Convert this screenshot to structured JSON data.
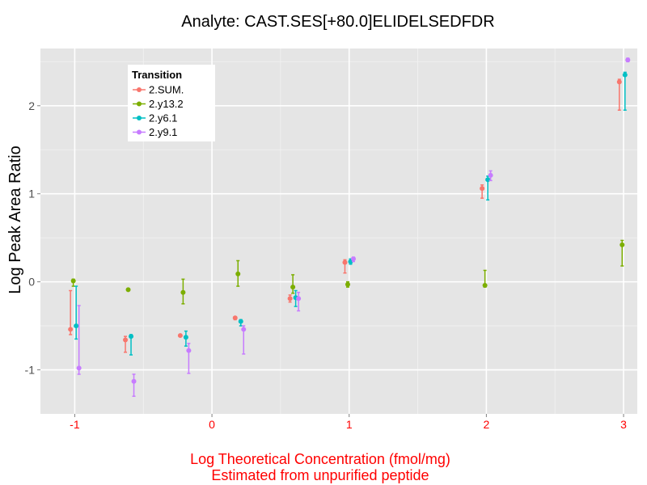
{
  "chart_data": {
    "type": "scatter",
    "title": "Analyte: CAST.SES[+80.0]ELIDELSEDFDR",
    "ylabel": "Log Peak Area Ratio",
    "xlabel_lines": [
      "Log Theoretical Concentration (fmol/mg)",
      "Estimated from unpurified peptide"
    ],
    "x_ticks": [
      "-1",
      "0",
      "1",
      "2",
      "3"
    ],
    "y_ticks": [
      "-1",
      "0",
      "1",
      "2"
    ],
    "xlim": [
      -1.25,
      3.1
    ],
    "ylim": [
      -1.5,
      2.65
    ],
    "grid": true,
    "error_bars": true,
    "legend": {
      "title": "Transition",
      "position": "top-left"
    },
    "series": [
      {
        "name": "2.SUM.",
        "color": "#F8766D",
        "points": [
          {
            "x": -1.0,
            "y": -0.54,
            "lo": -0.6,
            "hi": -0.1
          },
          {
            "x": -0.6,
            "y": -0.66,
            "lo": -0.8,
            "hi": -0.62
          },
          {
            "x": -0.2,
            "y": -0.61,
            "lo": -0.62,
            "hi": -0.6
          },
          {
            "x": 0.2,
            "y": -0.41,
            "lo": -0.43,
            "hi": -0.4
          },
          {
            "x": 0.6,
            "y": -0.19,
            "lo": -0.23,
            "hi": -0.15
          },
          {
            "x": 1.0,
            "y": 0.22,
            "lo": 0.1,
            "hi": 0.25
          },
          {
            "x": 2.0,
            "y": 1.06,
            "lo": 0.95,
            "hi": 1.1
          },
          {
            "x": 3.0,
            "y": 2.27,
            "lo": 1.95,
            "hi": 2.3
          }
        ]
      },
      {
        "name": "2.y13.2",
        "color": "#7CAE00",
        "points": [
          {
            "x": -1.0,
            "y": 0.01,
            "lo": -0.05,
            "hi": 0.03
          },
          {
            "x": -0.6,
            "y": -0.09,
            "lo": -0.1,
            "hi": -0.08
          },
          {
            "x": -0.2,
            "y": -0.12,
            "lo": -0.25,
            "hi": 0.03
          },
          {
            "x": 0.2,
            "y": 0.09,
            "lo": -0.05,
            "hi": 0.24
          },
          {
            "x": 0.6,
            "y": -0.06,
            "lo": -0.13,
            "hi": 0.08
          },
          {
            "x": 1.0,
            "y": -0.03,
            "lo": -0.06,
            "hi": 0.0
          },
          {
            "x": 2.0,
            "y": -0.04,
            "lo": -0.06,
            "hi": 0.13
          },
          {
            "x": 3.0,
            "y": 0.42,
            "lo": 0.18,
            "hi": 0.47
          }
        ]
      },
      {
        "name": "2.y6.1",
        "color": "#00BFC4",
        "points": [
          {
            "x": -1.0,
            "y": -0.5,
            "lo": -0.65,
            "hi": -0.05
          },
          {
            "x": -0.6,
            "y": -0.62,
            "lo": -0.83,
            "hi": -0.6
          },
          {
            "x": -0.2,
            "y": -0.63,
            "lo": -0.73,
            "hi": -0.56
          },
          {
            "x": 0.2,
            "y": -0.45,
            "lo": -0.5,
            "hi": -0.43
          },
          {
            "x": 0.6,
            "y": -0.18,
            "lo": -0.28,
            "hi": -0.1
          },
          {
            "x": 1.0,
            "y": 0.23,
            "lo": 0.2,
            "hi": 0.26
          },
          {
            "x": 2.0,
            "y": 1.16,
            "lo": 0.93,
            "hi": 1.2
          },
          {
            "x": 3.0,
            "y": 2.35,
            "lo": 1.95,
            "hi": 2.38
          }
        ]
      },
      {
        "name": "2.y9.1",
        "color": "#C77CFF",
        "points": [
          {
            "x": -1.0,
            "y": -0.98,
            "lo": -1.05,
            "hi": -0.27
          },
          {
            "x": -0.6,
            "y": -1.13,
            "lo": -1.3,
            "hi": -1.05
          },
          {
            "x": -0.2,
            "y": -0.78,
            "lo": -1.04,
            "hi": -0.7
          },
          {
            "x": 0.2,
            "y": -0.54,
            "lo": -0.82,
            "hi": -0.5
          },
          {
            "x": 0.6,
            "y": -0.19,
            "lo": -0.33,
            "hi": -0.12
          },
          {
            "x": 1.0,
            "y": 0.26,
            "lo": 0.23,
            "hi": 0.28
          },
          {
            "x": 2.0,
            "y": 1.21,
            "lo": 1.15,
            "hi": 1.26
          },
          {
            "x": 3.0,
            "y": 2.52,
            "lo": 2.5,
            "hi": 2.54
          }
        ]
      }
    ]
  }
}
